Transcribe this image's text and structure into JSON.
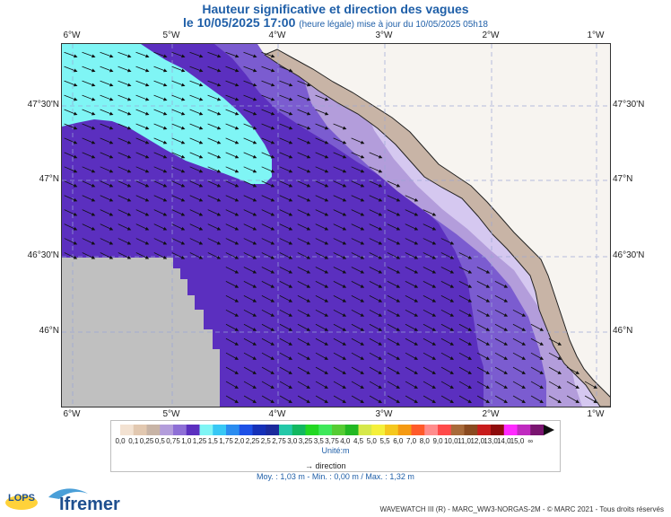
{
  "header": {
    "title": "Hauteur significative et direction des vagues",
    "date_line": "le 10/05/2025 17:00",
    "date_suffix": "(heure légale) mise à jour du 10/05/2025 05h18"
  },
  "axes": {
    "lon_ticks": [
      "6°W",
      "5°W",
      "4°W",
      "3°W",
      "2°W",
      "1°W"
    ],
    "lat_ticks": [
      "47°30'N",
      "47°N",
      "46°30'N",
      "46°N"
    ]
  },
  "legend": {
    "unit": "Unité:m",
    "labels": [
      "0,0",
      "0,1",
      "0,25",
      "0,5",
      "0,75",
      "1,0",
      "1,25",
      "1,5",
      "1,75",
      "2,0",
      "2,25",
      "2,5",
      "2,75",
      "3,0",
      "3,25",
      "3,5",
      "3,75",
      "4,0",
      "4,5",
      "5,0",
      "5,5",
      "6,0",
      "7,0",
      "8,0",
      "9,0",
      "10,0",
      "11,0",
      "12,0",
      "13,0",
      "14,0",
      "15,0",
      "∞"
    ],
    "colors": [
      "#f3e2d2",
      "#e2c8b0",
      "#c8b4a6",
      "#b39ddb",
      "#8e6fd6",
      "#5b2fbf",
      "#7ff5f5",
      "#37c8f5",
      "#2a8cf0",
      "#1d50e6",
      "#1530b8",
      "#1b2a9c",
      "#23c8a8",
      "#12b860",
      "#22d822",
      "#3ee85a",
      "#55cc33",
      "#22b822",
      "#d6e84b",
      "#f5f03b",
      "#f5c81e",
      "#f59a12",
      "#ff5a2a",
      "#ff8c8c",
      "#ff4a4a",
      "#a86a3a",
      "#8a4a20",
      "#c81c1c",
      "#8e0c0c",
      "#ff2aff",
      "#c02ac0",
      "#7a1570"
    ]
  },
  "direction_label": "direction",
  "stats": "Moy. : 1,03 m   -   Min. : 0,00 m / Max. : 1,32 m",
  "footer": "WAVEWATCH III (R) - MARC_WW3-NORGAS-2M - © MARC 2021 - Tous droits réservés",
  "logos": {
    "lops": "LOPS",
    "ifremer": "Ifremer"
  },
  "colors": {
    "deep_purple": "#5b2fbf",
    "mid_purple": "#8e6fd6",
    "light_purple": "#b39ddb",
    "cyan": "#7ff5f5",
    "land": "#c8b4a6",
    "nodata": "#c0c0c0"
  }
}
